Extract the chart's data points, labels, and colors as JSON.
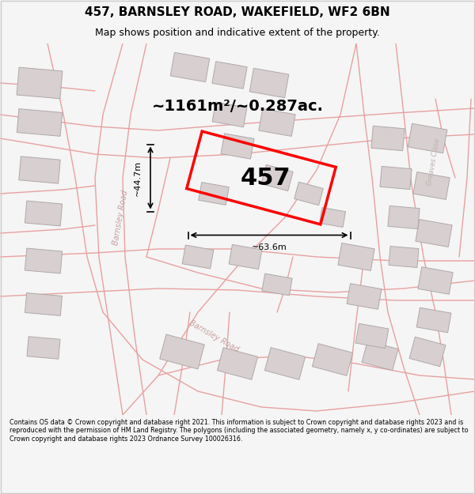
{
  "title_line1": "457, BARNSLEY ROAD, WAKEFIELD, WF2 6BN",
  "title_line2": "Map shows position and indicative extent of the property.",
  "area_text": "~1161m²/~0.287ac.",
  "label_457": "457",
  "dim_vertical": "~44.7m",
  "dim_horizontal": "~63.6m",
  "copyright_text": "Contains OS data © Crown copyright and database right 2021. This information is subject to Crown copyright and database rights 2023 and is reproduced with the permission of HM Land Registry. The polygons (including the associated geometry, namely x, y co-ordinates) are subject to Crown copyright and database rights 2023 Ordnance Survey 100026316.",
  "bg_color": "#f5f5f5",
  "map_bg_color": "#ffffff",
  "road_color": "#e8a0a0",
  "building_color": "#d8d0d0",
  "red_outline_color": "#ff0000",
  "dim_color": "#000000",
  "title_color": "#000000",
  "area_text_color": "#000000",
  "footer_bg": "#ffffff",
  "fig_width": 6.0,
  "fig_height": 6.25
}
